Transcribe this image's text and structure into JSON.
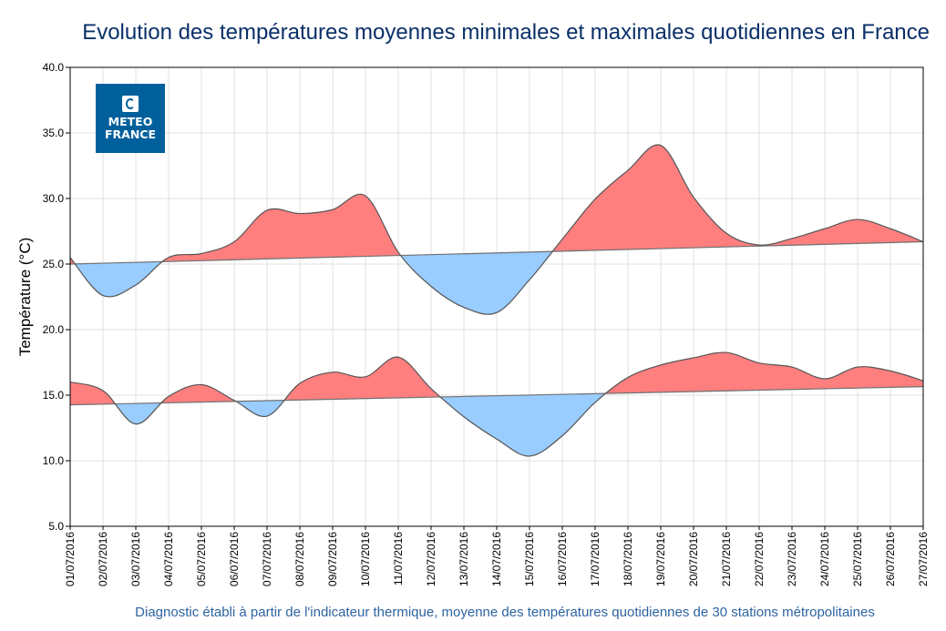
{
  "chart_data": {
    "type": "area",
    "title": "Evolution des températures moyennes minimales et maximales quotidiennes en France",
    "footer": "Diagnostic établi à partir de l'indicateur thermique, moyenne des températures quotidiennes de 30 stations métropolitaines",
    "ylabel": "Température (°C)",
    "xlabel": "",
    "ylim": [
      5,
      40
    ],
    "yticks": [
      "5.0",
      "10.0",
      "15.0",
      "20.0",
      "25.0",
      "30.0",
      "35.0",
      "40.0"
    ],
    "grid": true,
    "logo": "METEO FRANCE",
    "colors": {
      "above": "#ff7f7f",
      "below": "#99ccff",
      "line": "#555555",
      "normal": "#707070"
    },
    "categories": [
      "01/07/2016",
      "02/07/2016",
      "03/07/2016",
      "04/07/2016",
      "05/07/2016",
      "06/07/2016",
      "07/07/2016",
      "08/07/2016",
      "09/07/2016",
      "10/07/2016",
      "11/07/2016",
      "12/07/2016",
      "13/07/2016",
      "14/07/2016",
      "15/07/2016",
      "16/07/2016",
      "17/07/2016",
      "18/07/2016",
      "19/07/2016",
      "20/07/2016",
      "21/07/2016",
      "22/07/2016",
      "23/07/2016",
      "24/07/2016",
      "25/07/2016",
      "26/07/2016",
      "27/07/2016"
    ],
    "series": [
      {
        "key": "max",
        "values": [
          25.5,
          22.6,
          23.4,
          25.5,
          25.8,
          26.7,
          29.1,
          28.85,
          29.15,
          30.2,
          25.9,
          23.3,
          21.7,
          21.3,
          23.8,
          26.9,
          29.95,
          32.15,
          34.05,
          30.1,
          27.35,
          26.45,
          26.95,
          27.7,
          28.4,
          27.7,
          26.7
        ],
        "normal": [
          25.0,
          26.7
        ]
      },
      {
        "key": "min",
        "values": [
          16.0,
          15.35,
          12.8,
          14.9,
          15.8,
          14.6,
          13.4,
          15.9,
          16.75,
          16.4,
          17.9,
          15.5,
          13.35,
          11.65,
          10.35,
          11.9,
          14.45,
          16.35,
          17.3,
          17.85,
          18.25,
          17.45,
          17.15,
          16.25,
          17.15,
          16.85,
          16.1
        ],
        "normal": [
          14.26,
          15.65
        ]
      }
    ]
  }
}
